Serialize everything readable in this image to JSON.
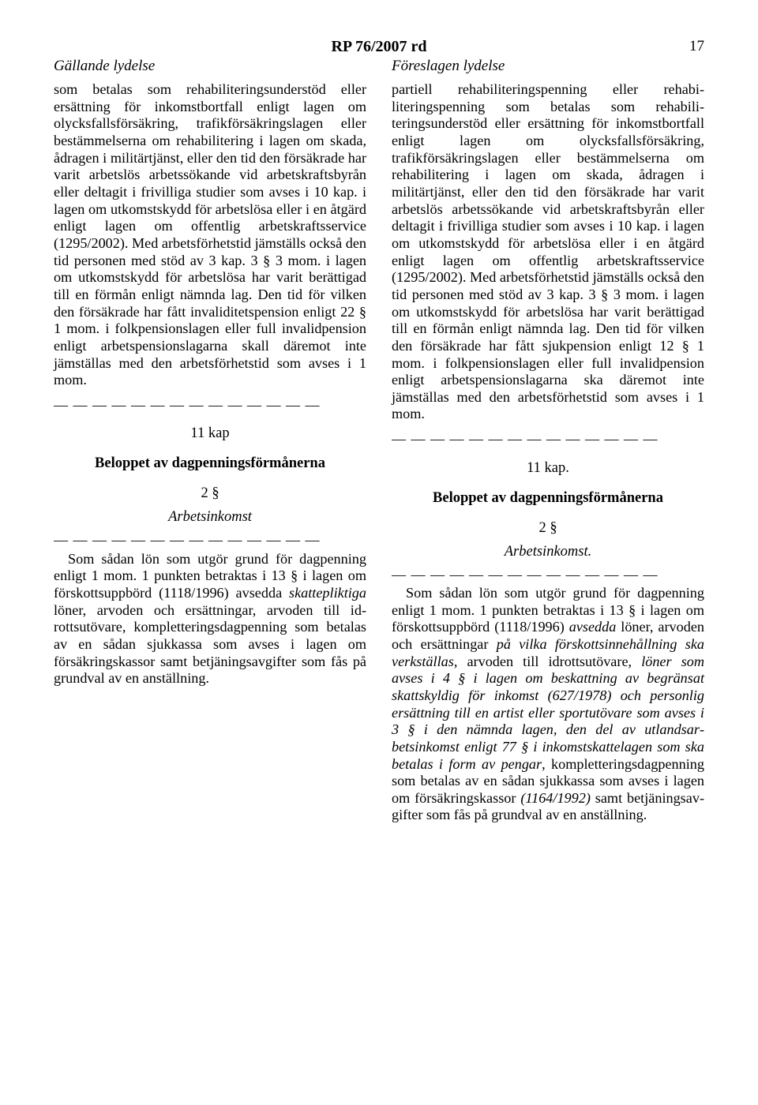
{
  "header": {
    "doc_title": "RP 76/2007 rd",
    "page_number": "17",
    "left_label": "Gällande lydelse",
    "right_label": "Föreslagen lydelse"
  },
  "upper": {
    "left_pre": "som betalas som rehabiliteringsunderstöd eller ersättning för inkomstbortfall enligt lagen om olycksfallsförsäkring, trafikför­säkringslagen eller bestämmelserna om re­habilitering i lagen om skada, ådragen i mi­litärtjänst, eller den tid den försäkrade har varit arbetslös arbetssökande vid arbets­kraftsbyrån eller deltagit i frivilliga studier som avses i 10 kap. i lagen om utkomst­skydd för arbetslösa eller i en åtgärd enligt lagen om offentlig arbetskraftsservice (1295/2002). Med arbetsförhetstid jämställs också den tid personen med stöd av 3 kap. 3 § 3 mom. i lagen om utkomstskydd för arbetslösa har varit berättigad till en förmån enligt nämnda lag. Den tid för vilken den försäkrade har fått invaliditetspension enligt 22 § 1 mom. i folkpensionslagen eller full invalidpension enligt arbetspensionslagarna skall däremot inte jämställas med den ar­betsförhetstid som avses i 1 mom.",
    "right_pre": "partiell rehabiliteringspenning eller rehabi­literingspenning som betalas som rehabili­teringsunderstöd eller ersättning för in­komstbortfall enligt lagen om olycksfalls­försäkring, trafikförsäkringslagen eller be­stämmelserna om rehabilitering i lagen om skada, ådragen i militärtjänst, eller den tid den försäkrade har varit arbetslös arbetssö­kande vid arbetskraftsbyrån eller deltagit i frivilliga studier som avses i 10 kap. i lagen om utkomstskydd för arbetslösa eller i en åtgärd enligt lagen om offentlig arbets­kraftsservice (1295/2002). Med arbetsför­hetstid jämställs också den tid personen med stöd av 3 kap. 3 § 3 mom. i lagen om utkomstskydd för arbetslösa har varit berät­tigad till en förmån enligt nämnda lag. Den tid för vilken den försäkrade har fått sjuk­pension enligt 12 § 1 mom. i folkpensions­lagen eller full invalidpension enligt arbets­pensionslagarna ska däremot inte jämställas med den arbetsförhetstid som avses i 1 mom."
  },
  "middle": {
    "left_chapter": "11 kap",
    "right_chapter": "11 kap.",
    "left_title": "Beloppet av dagpenningsförmånerna",
    "right_title": "Beloppet av dagpenningsförmånerna",
    "left_secnum": "2 §",
    "right_secnum": "2 §",
    "left_sub": "Arbetsinkomst",
    "right_sub": "Arbetsinkomst."
  },
  "lower": {
    "left_plain1": "Som sådan lön som utgör grund för dag­penning enligt 1 mom. 1 punkten betraktas i 13 § i lagen om förskottsuppbörd (1118/1996) avsedda ",
    "left_ital1": "skattepliktiga",
    "left_plain2": " löner, arvoden och ersättningar, arvoden till id­rottsutövare, kompletteringsdagpenning som betalas av en sådan sjukkassa som av­ses i lagen om försäkringskassor samt be­tjäningsavgifter som fås på grundval av en anställning.",
    "right_plain1": "Som sådan lön som utgör grund för dag­penning enligt 1 mom. 1 punkten betraktas i 13 § i lagen om förskottsuppbörd (1118/1996) ",
    "right_ital1": "avsedda",
    "right_plain2": " löner, arvoden och er­sättningar ",
    "right_ital2": "på vilka förskottsinnehållning ska verkställas",
    "right_plain3": ", arvoden till idrottsutövare, ",
    "right_ital3": "löner som avses i 4 § i lagen om beskatt­ning av begränsat skattskyldig för inkomst (627/1978) och personlig ersättning till en artist eller sportutövare som avses i 3 § i den nämnda lagen, den del av utlandsar­betsinkomst enligt 77 § i inkomstskattelagen som ska betalas i form av pengar",
    "right_plain4": ", komplet­teringsdagpenning som betalas av en sådan sjukkassa som avses i lagen om försäk­ringskassor ",
    "right_ital4": "(1164/1992)",
    "right_plain5": " samt betjäningsav­gifter som fås på grundval av en anställ­ning."
  },
  "dashes": "— — — — — — — — — — — — — —"
}
